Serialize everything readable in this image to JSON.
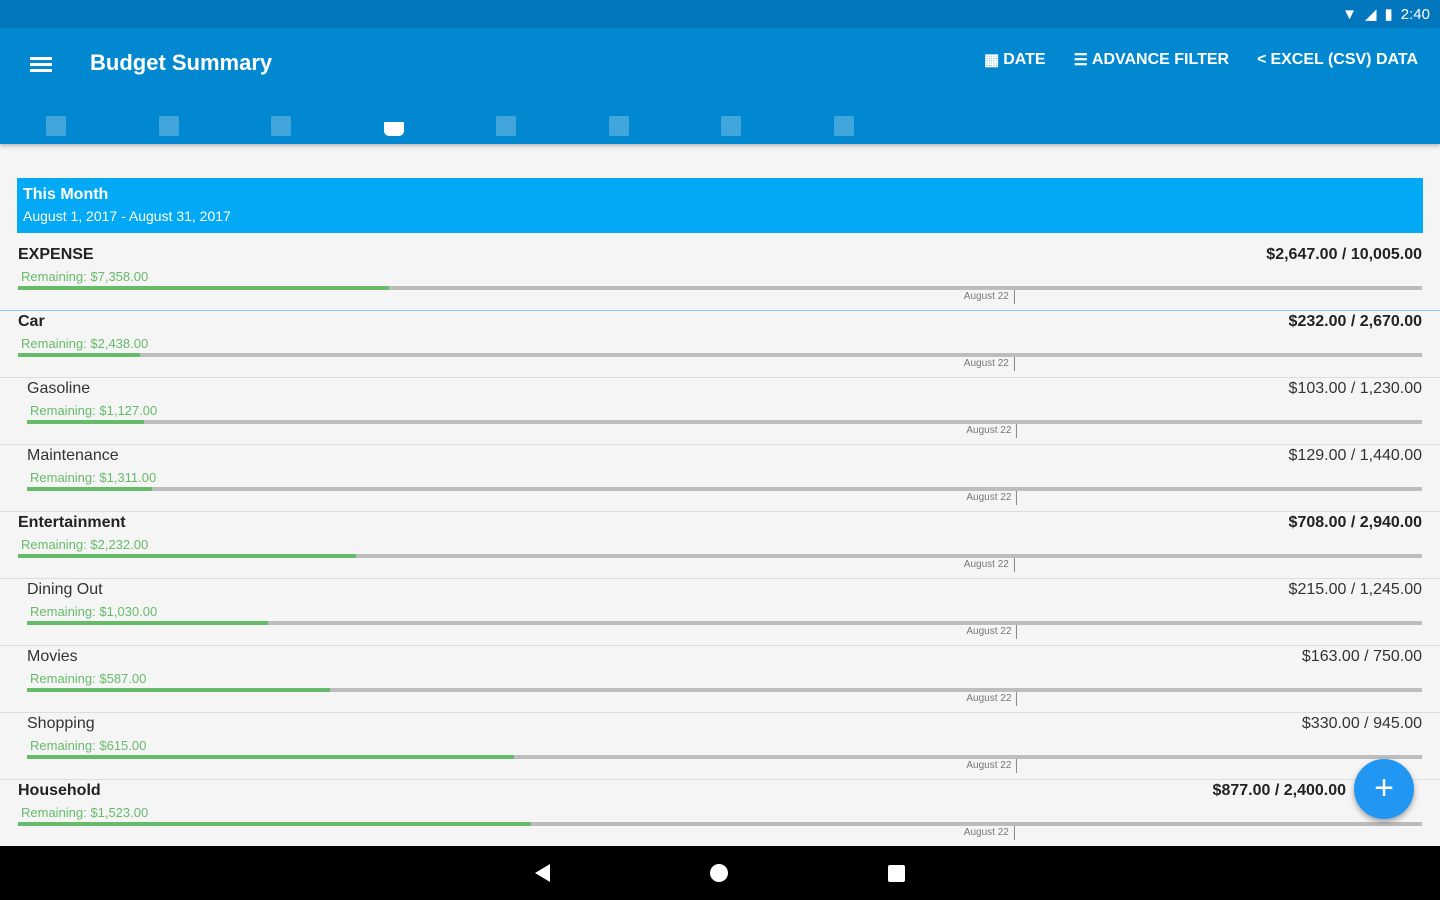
{
  "status": {
    "time": "2:40"
  },
  "appbar": {
    "title": "Budget Summary",
    "actions": [
      {
        "icon": "calendar-icon",
        "label": "DATE"
      },
      {
        "icon": "filter-icon",
        "label": "ADVANCE FILTER"
      },
      {
        "icon": "share-icon",
        "label": "EXCEL (CSV) DATA"
      }
    ]
  },
  "tabs": [
    {
      "icon": "dashboard-icon"
    },
    {
      "icon": "list-icon"
    },
    {
      "icon": "bell-icon"
    },
    {
      "icon": "basket-icon",
      "active": true
    },
    {
      "icon": "clipboard-icon"
    },
    {
      "icon": "wallet-icon"
    },
    {
      "icon": "cards-icon"
    },
    {
      "icon": "label-icon"
    }
  ],
  "period": {
    "title": "This Month",
    "range": "August 1, 2017 - August 31, 2017"
  },
  "rows": [
    {
      "level": "top",
      "name": "EXPENSE",
      "amount": "$2,647.00 / 10,005.00",
      "remaining": "Remaining: $7,358.00",
      "progress": 0.2646,
      "marker": "August 22"
    },
    {
      "level": "top",
      "name": "Car",
      "amount": "$232.00 / 2,670.00",
      "remaining": "Remaining: $2,438.00",
      "progress": 0.0869,
      "marker": "August 22"
    },
    {
      "level": "sub",
      "name": "Gasoline",
      "amount": "$103.00 / 1,230.00",
      "remaining": "Remaining: $1,127.00",
      "progress": 0.0837,
      "marker": "August 22"
    },
    {
      "level": "sub",
      "name": "Maintenance",
      "amount": "$129.00 / 1,440.00",
      "remaining": "Remaining: $1,311.00",
      "progress": 0.0896,
      "marker": "August 22"
    },
    {
      "level": "top",
      "name": "Entertainment",
      "amount": "$708.00 / 2,940.00",
      "remaining": "Remaining: $2,232.00",
      "progress": 0.2408,
      "marker": "August 22"
    },
    {
      "level": "sub",
      "name": "Dining Out",
      "amount": "$215.00 / 1,245.00",
      "remaining": "Remaining: $1,030.00",
      "progress": 0.1727,
      "marker": "August 22"
    },
    {
      "level": "sub",
      "name": "Movies",
      "amount": "$163.00 / 750.00",
      "remaining": "Remaining: $587.00",
      "progress": 0.2173,
      "marker": "August 22"
    },
    {
      "level": "sub",
      "name": "Shopping",
      "amount": "$330.00 / 945.00",
      "remaining": "Remaining: $615.00",
      "progress": 0.3492,
      "marker": "August 22"
    },
    {
      "level": "top",
      "name": "Household",
      "amount": "$877.00 / 2,400.00",
      "remaining": "Remaining: $1,523.00",
      "progress": 0.3654,
      "marker": "August 22"
    }
  ],
  "month_progress": 0.71,
  "fab": {
    "label": "+"
  },
  "colors": {
    "primary": "#0288d1",
    "accent": "#03a9f4",
    "progress": "#66bb6a"
  }
}
